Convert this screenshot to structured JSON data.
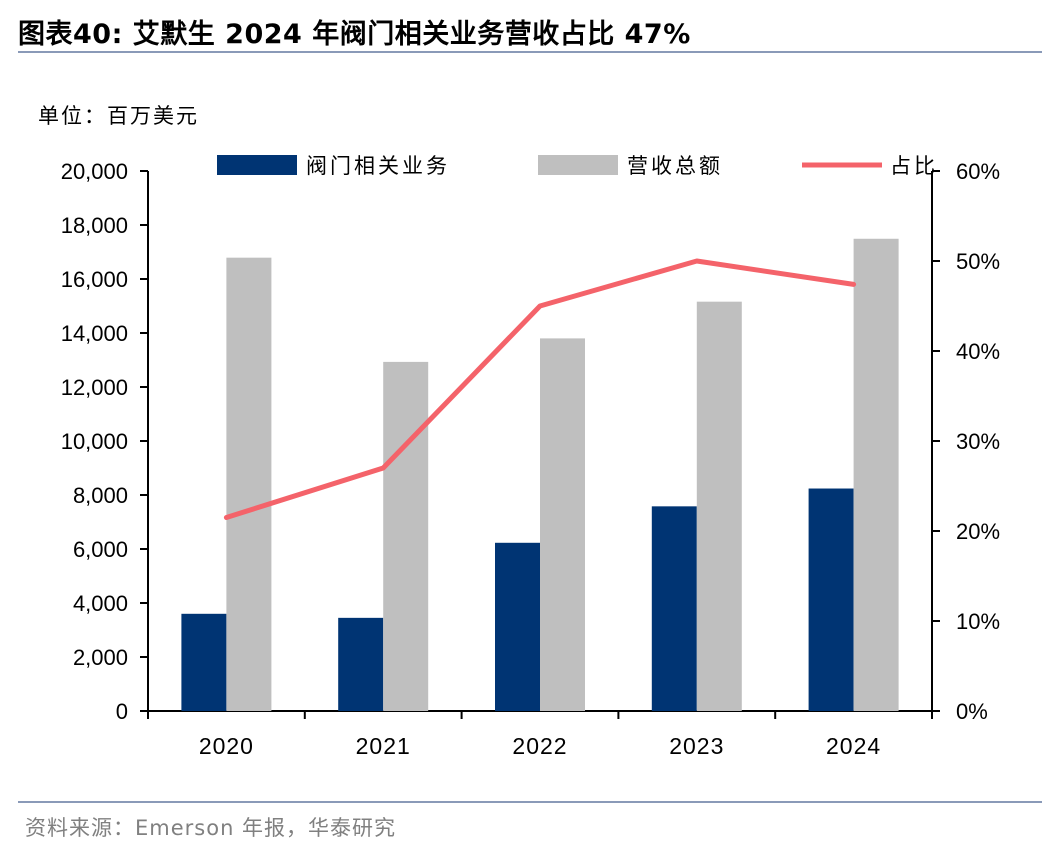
{
  "title": "图表40:  艾默生 2024 年阀门相关业务营收占比 47%",
  "unit_label": "单位：百万美元",
  "source": "资料来源：Emerson 年报，华泰研究",
  "colors": {
    "valve": "#003473",
    "total": "#bfbfbf",
    "ratio": "#f4636a",
    "rule": "#8a9ab8"
  },
  "chart_data": {
    "type": "bar",
    "categories": [
      "2020",
      "2021",
      "2022",
      "2023",
      "2024"
    ],
    "series": [
      {
        "name": "阀门相关业务",
        "type": "bar",
        "axis": "left",
        "values": [
          3600,
          3450,
          6230,
          7580,
          8240
        ]
      },
      {
        "name": "营收总额",
        "type": "bar",
        "axis": "left",
        "values": [
          16790,
          12930,
          13800,
          15160,
          17490
        ]
      },
      {
        "name": "占比",
        "type": "line",
        "axis": "right",
        "values": [
          21.5,
          27.0,
          45.0,
          50.0,
          47.4
        ]
      }
    ],
    "ylim_left": [
      0,
      20000
    ],
    "yticks_left": [
      "0",
      "2,000",
      "4,000",
      "6,000",
      "8,000",
      "10,000",
      "12,000",
      "14,000",
      "16,000",
      "18,000",
      "20,000"
    ],
    "ylim_right": [
      0,
      60
    ],
    "yticks_right": [
      "0%",
      "10%",
      "20%",
      "30%",
      "40%",
      "50%",
      "60%"
    ],
    "legend_position": "top"
  }
}
